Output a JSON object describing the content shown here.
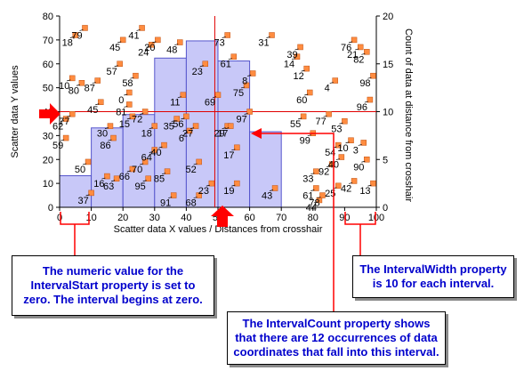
{
  "chart_data": {
    "type": "scatter",
    "xlabel": "Scatter data X values / Distances from crosshair",
    "ylabel": "Scatter data Y values",
    "y2label": "Count of data at distance from crosshair",
    "xlim": [
      0,
      100
    ],
    "ylim": [
      0,
      80
    ],
    "y2lim": [
      0,
      20
    ],
    "x_ticks": [
      0,
      10,
      20,
      30,
      40,
      50,
      60,
      70,
      80,
      90,
      100
    ],
    "y_ticks": [
      0,
      10,
      20,
      30,
      40,
      50,
      60,
      70,
      80
    ],
    "y2_ticks": [
      0,
      5,
      10,
      15,
      20
    ],
    "grid": false,
    "crosshair": {
      "x": 49,
      "y": 40
    },
    "histogram": {
      "interval_start": 0,
      "interval_width": 10,
      "counts": [
        3.3,
        8.3,
        9.7,
        15.6,
        17.4,
        15.3,
        7.9
      ]
    },
    "points": [
      [
        2,
        29,
        "59"
      ],
      [
        2,
        37,
        "62"
      ],
      [
        4,
        39,
        "77"
      ],
      [
        4,
        54,
        "10"
      ],
      [
        5,
        72,
        "18"
      ],
      [
        8,
        75,
        "79"
      ],
      [
        7,
        52,
        "80"
      ],
      [
        9,
        19,
        "50"
      ],
      [
        10,
        6,
        "37"
      ],
      [
        12,
        53,
        "87"
      ],
      [
        13,
        44,
        "45"
      ],
      [
        15,
        13,
        "16"
      ],
      [
        16,
        34,
        "30"
      ],
      [
        17,
        29,
        "86"
      ],
      [
        18,
        12,
        "63"
      ],
      [
        19,
        60,
        "57"
      ],
      [
        20,
        70,
        "45"
      ],
      [
        22,
        43,
        "81"
      ],
      [
        22,
        48,
        "0"
      ],
      [
        24,
        55,
        "58"
      ],
      [
        23,
        16,
        "66"
      ],
      [
        23,
        38,
        "15"
      ],
      [
        26,
        75,
        "41"
      ],
      [
        27,
        40,
        "72"
      ],
      [
        27,
        19,
        "70"
      ],
      [
        28,
        12,
        "95"
      ],
      [
        29,
        68,
        "24"
      ],
      [
        30,
        24,
        "64"
      ],
      [
        30,
        34,
        "18"
      ],
      [
        31,
        70,
        "20"
      ],
      [
        33,
        26,
        "40"
      ],
      [
        34,
        15,
        "85"
      ],
      [
        36,
        5,
        "91"
      ],
      [
        37,
        37,
        "35"
      ],
      [
        38,
        69,
        "48"
      ],
      [
        39,
        47,
        "11"
      ],
      [
        40,
        38,
        "56"
      ],
      [
        41,
        32,
        "6"
      ],
      [
        43,
        34,
        "27"
      ],
      [
        44,
        19,
        "52"
      ],
      [
        44,
        5,
        "68"
      ],
      [
        46,
        60,
        "23"
      ],
      [
        48,
        10,
        "23"
      ],
      [
        50,
        47,
        "69"
      ],
      [
        53,
        72,
        "73"
      ],
      [
        55,
        63,
        "61"
      ],
      [
        53,
        34,
        "29"
      ],
      [
        54,
        34,
        "17"
      ],
      [
        56,
        25,
        "17"
      ],
      [
        56,
        10,
        "19"
      ],
      [
        59,
        51,
        "75"
      ],
      [
        60,
        40,
        "97"
      ],
      [
        61,
        56,
        "8"
      ],
      [
        67,
        72,
        "31"
      ],
      [
        68,
        8,
        "43"
      ],
      [
        75,
        63,
        "14"
      ],
      [
        76,
        67,
        "39"
      ],
      [
        77,
        38,
        "55"
      ],
      [
        78,
        58,
        "12"
      ],
      [
        79,
        48,
        "60"
      ],
      [
        80,
        31,
        "99"
      ],
      [
        81,
        15,
        "33"
      ],
      [
        81,
        8,
        "61"
      ],
      [
        82,
        3,
        "44"
      ],
      [
        83,
        5,
        "78"
      ],
      [
        85,
        39,
        "77"
      ],
      [
        86,
        18,
        "92"
      ],
      [
        87,
        53,
        "4"
      ],
      [
        88,
        9,
        "25"
      ],
      [
        88,
        26,
        "54"
      ],
      [
        89,
        21,
        "40"
      ],
      [
        90,
        36,
        "53"
      ],
      [
        92,
        28,
        "10"
      ],
      [
        93,
        70,
        "76"
      ],
      [
        93,
        11,
        "42"
      ],
      [
        95,
        67,
        "21"
      ],
      [
        96,
        27,
        "3"
      ],
      [
        97,
        20,
        "90"
      ],
      [
        97,
        65,
        "82"
      ],
      [
        99,
        55,
        "98"
      ],
      [
        98,
        45,
        "96"
      ],
      [
        99,
        10,
        "13"
      ]
    ]
  },
  "callouts": {
    "interval_start": "The numeric value for the IntervalStart property is set to zero. The interval begins at zero.",
    "interval_width": "The IntervalWidth property is 10 for each interval.",
    "interval_count": "The IntervalCount property shows that there are 12 occurrences of data coordinates that fall into this interval."
  },
  "colors": {
    "histogram_fill": "#c8c8f8",
    "histogram_stroke": "#5555cc",
    "marker": "#ff8c40",
    "crosshair": "#e00000",
    "callout_text": "#0000cc",
    "arrow": "#ff0000"
  }
}
